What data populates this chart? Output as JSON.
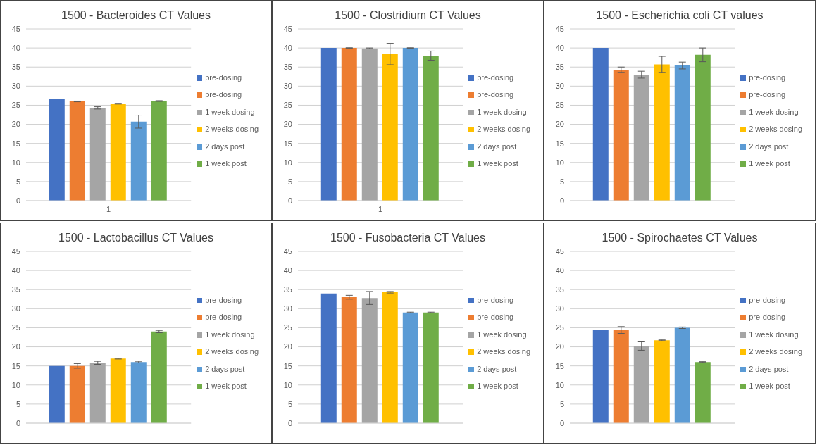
{
  "chart_data": [
    {
      "type": "bar",
      "title": "1500 - Bacteroides CT Values",
      "categories": [
        "1"
      ],
      "ylim": [
        0,
        45
      ],
      "yticks": [
        0,
        5,
        10,
        15,
        20,
        25,
        30,
        35,
        40,
        45
      ],
      "grid": "y",
      "legend": "right",
      "series": [
        {
          "name": "pre-dosing",
          "color": "#4472c4",
          "values": [
            26.7
          ]
        },
        {
          "name": "pre-dosing",
          "color": "#ed7d31",
          "values": [
            26.0
          ],
          "errors": [
            0.1
          ]
        },
        {
          "name": "1 week dosing",
          "color": "#a5a5a5",
          "values": [
            24.3
          ],
          "errors": [
            0.3
          ]
        },
        {
          "name": "2 weeks dosing",
          "color": "#ffc000",
          "values": [
            25.4
          ],
          "errors": [
            0.1
          ]
        },
        {
          "name": "2 days post",
          "color": "#5b9bd5",
          "values": [
            20.7
          ],
          "errors": [
            1.7
          ]
        },
        {
          "name": "1 week post",
          "color": "#70ad47",
          "values": [
            26.1
          ],
          "errors": [
            0.1
          ]
        }
      ]
    },
    {
      "type": "bar",
      "title": "1500 - Clostridium CT Values",
      "categories": [
        "1"
      ],
      "ylim": [
        0,
        45
      ],
      "yticks": [
        0,
        5,
        10,
        15,
        20,
        25,
        30,
        35,
        40,
        45
      ],
      "grid": "y",
      "legend": "right",
      "series": [
        {
          "name": "pre-dosing",
          "color": "#4472c4",
          "values": [
            40
          ]
        },
        {
          "name": "pre-dosing",
          "color": "#ed7d31",
          "values": [
            40
          ],
          "errors": [
            0.05
          ]
        },
        {
          "name": "1 week dosing",
          "color": "#a5a5a5",
          "values": [
            39.9
          ],
          "errors": [
            0.1
          ]
        },
        {
          "name": "2 weeks dosing",
          "color": "#ffc000",
          "values": [
            38.4
          ],
          "errors": [
            2.8
          ]
        },
        {
          "name": "2 days post",
          "color": "#5b9bd5",
          "values": [
            40
          ],
          "errors": [
            0.05
          ]
        },
        {
          "name": "1 week post",
          "color": "#70ad47",
          "values": [
            38
          ],
          "errors": [
            1.2
          ]
        }
      ]
    },
    {
      "type": "bar",
      "title": "1500 - Escherichia coli CT values",
      "categories": [
        null
      ],
      "ylim": [
        0,
        45
      ],
      "yticks": [
        0,
        5,
        10,
        15,
        20,
        25,
        30,
        35,
        40,
        45
      ],
      "grid": "y",
      "legend": "right",
      "series": [
        {
          "name": "pre-dosing",
          "color": "#4472c4",
          "values": [
            40
          ]
        },
        {
          "name": "pre-dosing",
          "color": "#ed7d31",
          "values": [
            34.3
          ],
          "errors": [
            0.7
          ]
        },
        {
          "name": "1 week dosing",
          "color": "#a5a5a5",
          "values": [
            33
          ],
          "errors": [
            0.9
          ]
        },
        {
          "name": "2 weeks dosing",
          "color": "#ffc000",
          "values": [
            35.7
          ],
          "errors": [
            2.1
          ]
        },
        {
          "name": "2 days post",
          "color": "#5b9bd5",
          "values": [
            35.4
          ],
          "errors": [
            0.9
          ]
        },
        {
          "name": "1 week post",
          "color": "#70ad47",
          "values": [
            38.2
          ],
          "errors": [
            1.8
          ]
        }
      ]
    },
    {
      "type": "bar",
      "title": "1500 - Lactobacillus CT Values",
      "categories": [
        null
      ],
      "ylim": [
        0,
        45
      ],
      "yticks": [
        0,
        5,
        10,
        15,
        20,
        25,
        30,
        35,
        40,
        45
      ],
      "grid": "y",
      "legend": "right",
      "series": [
        {
          "name": "pre-dosing",
          "color": "#4472c4",
          "values": [
            15
          ]
        },
        {
          "name": "pre-dosing",
          "color": "#ed7d31",
          "values": [
            15
          ],
          "errors": [
            0.6
          ]
        },
        {
          "name": "1 week dosing",
          "color": "#a5a5a5",
          "values": [
            15.8
          ],
          "errors": [
            0.4
          ]
        },
        {
          "name": "2 weeks dosing",
          "color": "#ffc000",
          "values": [
            16.9
          ],
          "errors": [
            0.1
          ]
        },
        {
          "name": "2 days post",
          "color": "#5b9bd5",
          "values": [
            16
          ],
          "errors": [
            0.2
          ]
        },
        {
          "name": "1 week post",
          "color": "#70ad47",
          "values": [
            24
          ],
          "errors": [
            0.3
          ]
        }
      ]
    },
    {
      "type": "bar",
      "title": "1500 - Fusobacteria CT Values",
      "categories": [
        null
      ],
      "ylim": [
        0,
        45
      ],
      "yticks": [
        0,
        5,
        10,
        15,
        20,
        25,
        30,
        35,
        40,
        45
      ],
      "grid": "y",
      "legend": "right",
      "series": [
        {
          "name": "pre-dosing",
          "color": "#4472c4",
          "values": [
            34
          ]
        },
        {
          "name": "pre-dosing",
          "color": "#ed7d31",
          "values": [
            33
          ],
          "errors": [
            0.5
          ]
        },
        {
          "name": "1 week dosing",
          "color": "#a5a5a5",
          "values": [
            32.8
          ],
          "errors": [
            1.7
          ]
        },
        {
          "name": "2 weeks dosing",
          "color": "#ffc000",
          "values": [
            34.3
          ],
          "errors": [
            0.2
          ]
        },
        {
          "name": "2 days post",
          "color": "#5b9bd5",
          "values": [
            29
          ],
          "errors": [
            0.1
          ]
        },
        {
          "name": "1 week post",
          "color": "#70ad47",
          "values": [
            29
          ],
          "errors": [
            0.1
          ]
        }
      ]
    },
    {
      "type": "bar",
      "title": "1500 - Spirochaetes CT Values",
      "categories": [
        null
      ],
      "ylim": [
        0,
        45
      ],
      "yticks": [
        0,
        5,
        10,
        15,
        20,
        25,
        30,
        35,
        40,
        45
      ],
      "grid": "y",
      "legend": "right",
      "series": [
        {
          "name": "pre-dosing",
          "color": "#4472c4",
          "values": [
            24.4
          ]
        },
        {
          "name": "pre-dosing",
          "color": "#ed7d31",
          "values": [
            24.4
          ],
          "errors": [
            0.9
          ]
        },
        {
          "name": "1 week dosing",
          "color": "#a5a5a5",
          "values": [
            20.2
          ],
          "errors": [
            1.1
          ]
        },
        {
          "name": "2 weeks dosing",
          "color": "#ffc000",
          "values": [
            21.7
          ],
          "errors": [
            0.1
          ]
        },
        {
          "name": "2 days post",
          "color": "#5b9bd5",
          "values": [
            25
          ],
          "errors": [
            0.2
          ]
        },
        {
          "name": "1 week post",
          "color": "#70ad47",
          "values": [
            16
          ],
          "errors": [
            0.1
          ]
        }
      ]
    }
  ]
}
